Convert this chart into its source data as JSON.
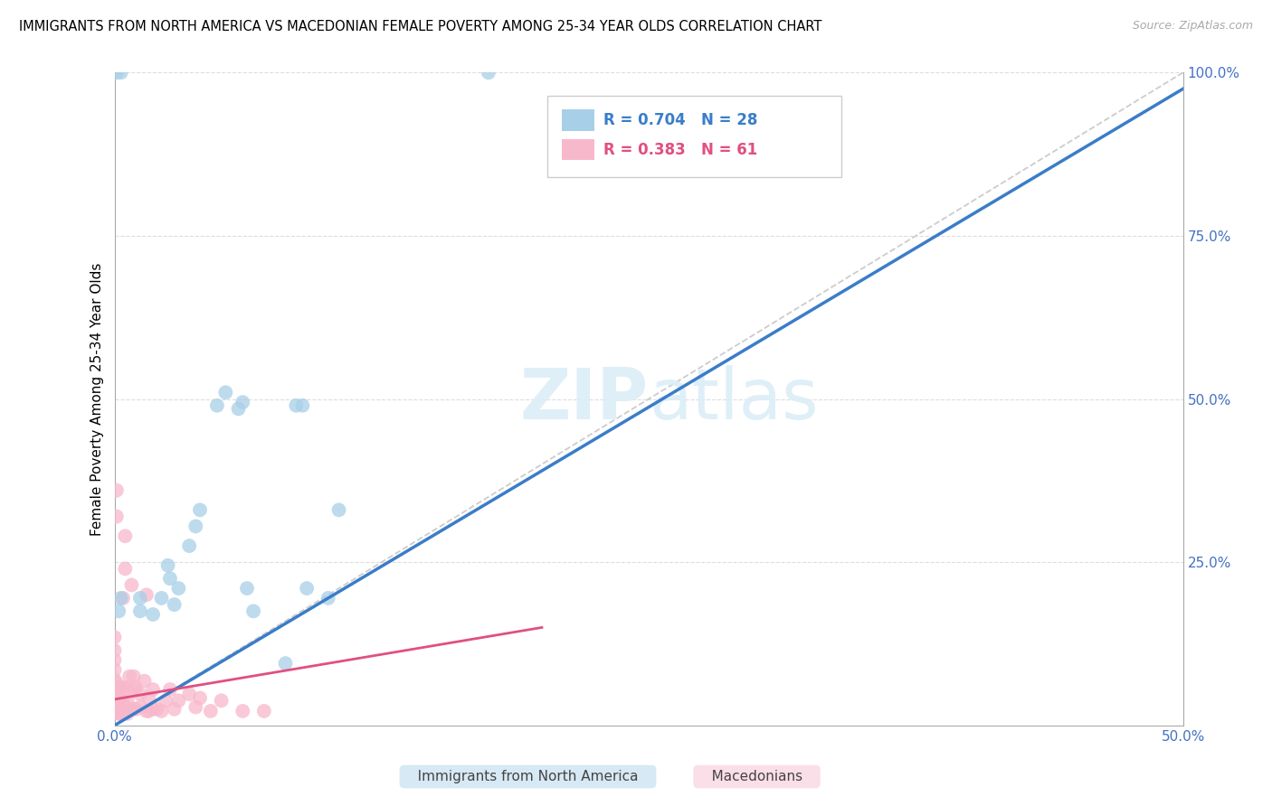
{
  "title": "IMMIGRANTS FROM NORTH AMERICA VS MACEDONIAN FEMALE POVERTY AMONG 25-34 YEAR OLDS CORRELATION CHART",
  "source": "Source: ZipAtlas.com",
  "ylabel": "Female Poverty Among 25-34 Year Olds",
  "blue_r": 0.704,
  "blue_n": 28,
  "pink_r": 0.383,
  "pink_n": 61,
  "blue_label": "Immigrants from North America",
  "pink_label": "Macedonians",
  "blue_color": "#a8cfe8",
  "pink_color": "#f8b8cc",
  "blue_line_color": "#3a7dc9",
  "pink_line_color": "#e05080",
  "watermark_color": "#dceef8",
  "grid_color": "#dddddd",
  "tick_color": "#4472c4",
  "blue_slope": 1.95,
  "blue_intercept": 0.0,
  "pink_slope": 0.55,
  "pink_intercept": 0.04,
  "blue_x": [
    0.002,
    0.003,
    0.012,
    0.012,
    0.018,
    0.022,
    0.025,
    0.026,
    0.028,
    0.03,
    0.035,
    0.038,
    0.04,
    0.048,
    0.052,
    0.058,
    0.06,
    0.062,
    0.065,
    0.08,
    0.085,
    0.088,
    0.09,
    0.1,
    0.105,
    0.175,
    0.003,
    0.001
  ],
  "blue_y": [
    0.175,
    0.195,
    0.175,
    0.195,
    0.17,
    0.195,
    0.245,
    0.225,
    0.185,
    0.21,
    0.275,
    0.305,
    0.33,
    0.49,
    0.51,
    0.485,
    0.495,
    0.21,
    0.175,
    0.095,
    0.49,
    0.49,
    0.21,
    0.195,
    0.33,
    1.0,
    1.0,
    1.0
  ],
  "pink_x": [
    0.0,
    0.0,
    0.0,
    0.0,
    0.0,
    0.0,
    0.0,
    0.0,
    0.0,
    0.0,
    0.001,
    0.001,
    0.001,
    0.001,
    0.001,
    0.001,
    0.002,
    0.002,
    0.002,
    0.003,
    0.003,
    0.003,
    0.004,
    0.004,
    0.004,
    0.004,
    0.005,
    0.005,
    0.006,
    0.006,
    0.006,
    0.007,
    0.008,
    0.008,
    0.009,
    0.009,
    0.009,
    0.01,
    0.01,
    0.012,
    0.012,
    0.014,
    0.015,
    0.015,
    0.016,
    0.016,
    0.018,
    0.018,
    0.02,
    0.022,
    0.024,
    0.026,
    0.028,
    0.03,
    0.035,
    0.038,
    0.04,
    0.045,
    0.05,
    0.06,
    0.07
  ],
  "pink_y": [
    0.02,
    0.025,
    0.035,
    0.045,
    0.055,
    0.07,
    0.085,
    0.1,
    0.115,
    0.135,
    0.02,
    0.035,
    0.05,
    0.065,
    0.32,
    0.36,
    0.018,
    0.038,
    0.058,
    0.018,
    0.038,
    0.058,
    0.018,
    0.038,
    0.058,
    0.195,
    0.24,
    0.29,
    0.018,
    0.038,
    0.058,
    0.075,
    0.025,
    0.215,
    0.025,
    0.055,
    0.075,
    0.025,
    0.058,
    0.028,
    0.048,
    0.068,
    0.022,
    0.2,
    0.022,
    0.042,
    0.025,
    0.055,
    0.025,
    0.022,
    0.038,
    0.055,
    0.025,
    0.038,
    0.048,
    0.028,
    0.042,
    0.022,
    0.038,
    0.022,
    0.022
  ]
}
